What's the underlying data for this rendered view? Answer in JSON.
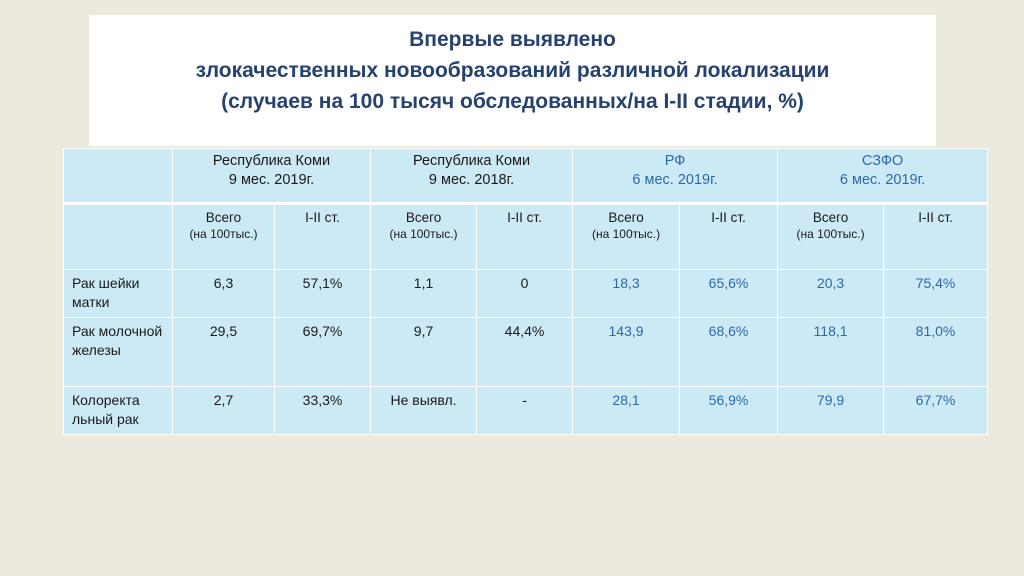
{
  "title": {
    "line1": "Впервые выявлено",
    "line2": "злокачественных новообразований различной локализации",
    "line3": "(случаев на 100 тысяч обследованных/на I-II стадии, %)"
  },
  "groups": [
    {
      "name": "Республика Коми",
      "period": "9 мес. 2019г."
    },
    {
      "name": "Республика Коми",
      "period": "9 мес. 2018г."
    },
    {
      "name": "РФ",
      "period": "6 мес. 2019г."
    },
    {
      "name": "СЗФО",
      "period": "6 мес. 2019г."
    }
  ],
  "sub": {
    "total": "Всего",
    "per100": "(на 100тыс.)",
    "stage": "I-II ст."
  },
  "rows": [
    {
      "label": "Рак шейки матки",
      "values": [
        "6,3",
        "57,1%",
        "1,1",
        "0",
        "18,3",
        "65,6%",
        "20,3",
        "75,4%"
      ]
    },
    {
      "label": "Рак молочной железы",
      "values": [
        "29,5",
        "69,7%",
        "9,7",
        "44,4%",
        "143,9",
        "68,6%",
        "118,1",
        "81,0%"
      ]
    },
    {
      "label": "Колоректа льный рак",
      "values": [
        "2,7",
        "33,3%",
        "Не выявл.",
        "-",
        "28,1",
        "56,9%",
        "79,9",
        "67,7%"
      ]
    }
  ]
}
